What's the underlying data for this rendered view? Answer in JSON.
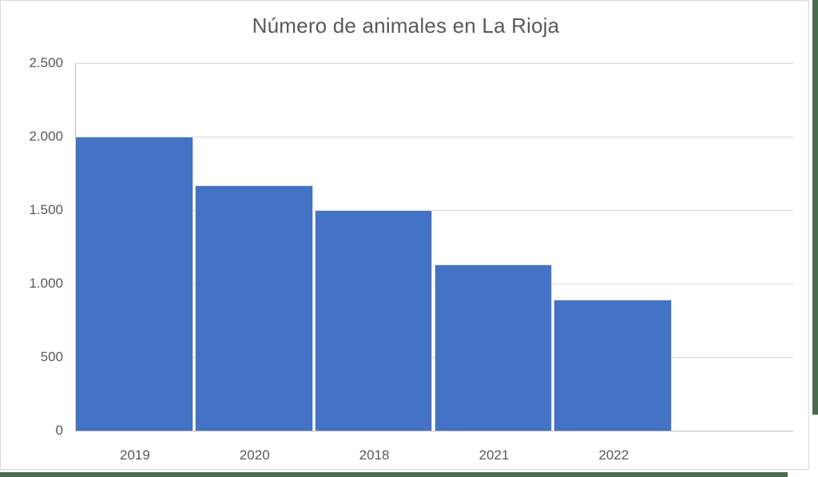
{
  "chart_data": {
    "type": "bar",
    "title": "Número de animales en La Rioja",
    "categories": [
      "2019",
      "2020",
      "2018",
      "2021",
      "2022"
    ],
    "values": [
      2000,
      1670,
      1500,
      1130,
      890
    ],
    "xlabel": "",
    "ylabel": "",
    "ylim": [
      0,
      2500
    ],
    "ytick_step": 500,
    "ytick_labels": [
      "0",
      "500",
      "1.000",
      "1.500",
      "2.000",
      "2.500"
    ],
    "grid": true,
    "legend": "none",
    "extra_empty_category_slot": true
  },
  "colors": {
    "bar": "#4472C4",
    "text": "#595959",
    "gridline": "#D9D9D9",
    "axis": "#BFBFBF",
    "card_border": "#D9D9D9",
    "page_green": "#4B6B51"
  }
}
